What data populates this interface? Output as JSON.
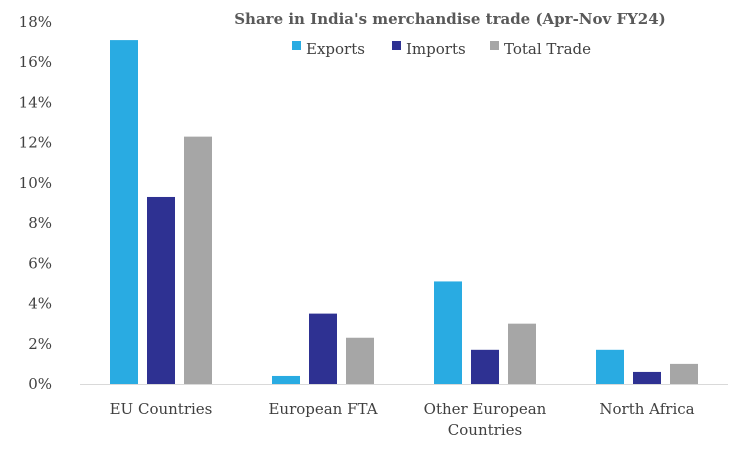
{
  "chart_data": {
    "type": "bar",
    "title": "Share in India's merchandise trade (Apr-Nov FY24)",
    "categories": [
      [
        "EU Countries"
      ],
      [
        "European FTA"
      ],
      [
        "Other European",
        "Countries"
      ],
      [
        "North Africa"
      ]
    ],
    "series": [
      {
        "name": "Exports",
        "color": "#29abe2",
        "values": [
          17.1,
          0.4,
          5.1,
          1.7
        ]
      },
      {
        "name": "Imports",
        "color": "#2e3192",
        "values": [
          9.3,
          3.5,
          1.7,
          0.6
        ]
      },
      {
        "name": "Total Trade",
        "color": "#a6a6a6",
        "values": [
          12.3,
          2.3,
          3.0,
          1.0
        ]
      }
    ],
    "ylim": [
      0,
      18
    ],
    "y_ticks": [
      "0%",
      "2%",
      "4%",
      "6%",
      "8%",
      "10%",
      "12%",
      "14%",
      "16%",
      "18%"
    ],
    "grid": false,
    "legend_position": "top-right"
  }
}
